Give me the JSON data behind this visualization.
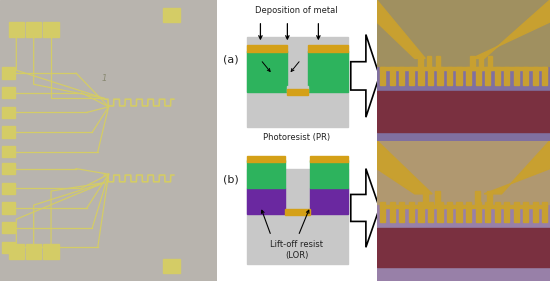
{
  "fig_width": 5.5,
  "fig_height": 2.81,
  "dpi": 100,
  "bg_color": "#ffffff",
  "chip_bg": "#b8b4ae",
  "pad_color": "#d4cc66",
  "pr_color": "#2db35d",
  "metal_color": "#d4a017",
  "lor_color": "#6a28a0",
  "diag_bg": "#c8c8c8",
  "text_color": "#222222",
  "photo_a_bg": "#8878a0",
  "photo_a_upper": "#a09060",
  "photo_a_lower_band": "#7a3a48",
  "photo_b_bg": "#9888a8",
  "photo_b_upper": "#b09870",
  "photo_b_lower_band": "#7a3a48",
  "heater_color": "#c8a030",
  "label_a": "(a)",
  "label_b": "(b)",
  "deposition_label": "Deposition of metal",
  "title_a": "Photoresist (PR)",
  "title_b": "Lift-off resist\n(LOR)"
}
